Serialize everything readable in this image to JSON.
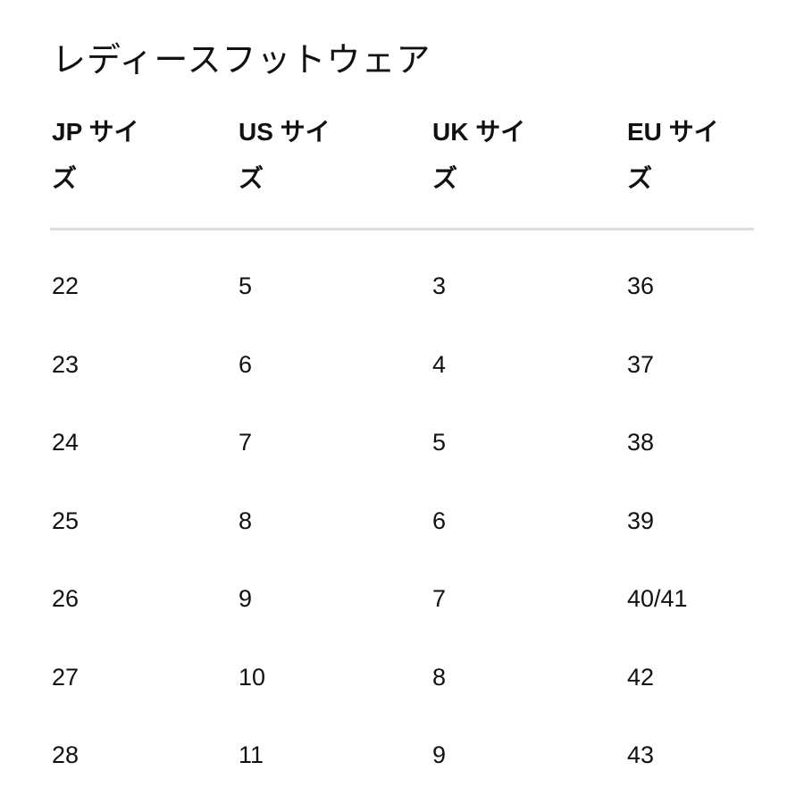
{
  "title": "レディースフットウェア",
  "headers": [
    "JP サイズ",
    "US サイズ",
    "UK サイズ",
    "EU サイズ"
  ],
  "rows": [
    [
      "22",
      "5",
      "3",
      "36"
    ],
    [
      "23",
      "6",
      "4",
      "37"
    ],
    [
      "24",
      "7",
      "5",
      "38"
    ],
    [
      "25",
      "8",
      "6",
      "39"
    ],
    [
      "26",
      "9",
      "7",
      "40/41"
    ],
    [
      "27",
      "10",
      "8",
      "42"
    ],
    [
      "28",
      "11",
      "9",
      "43"
    ]
  ]
}
